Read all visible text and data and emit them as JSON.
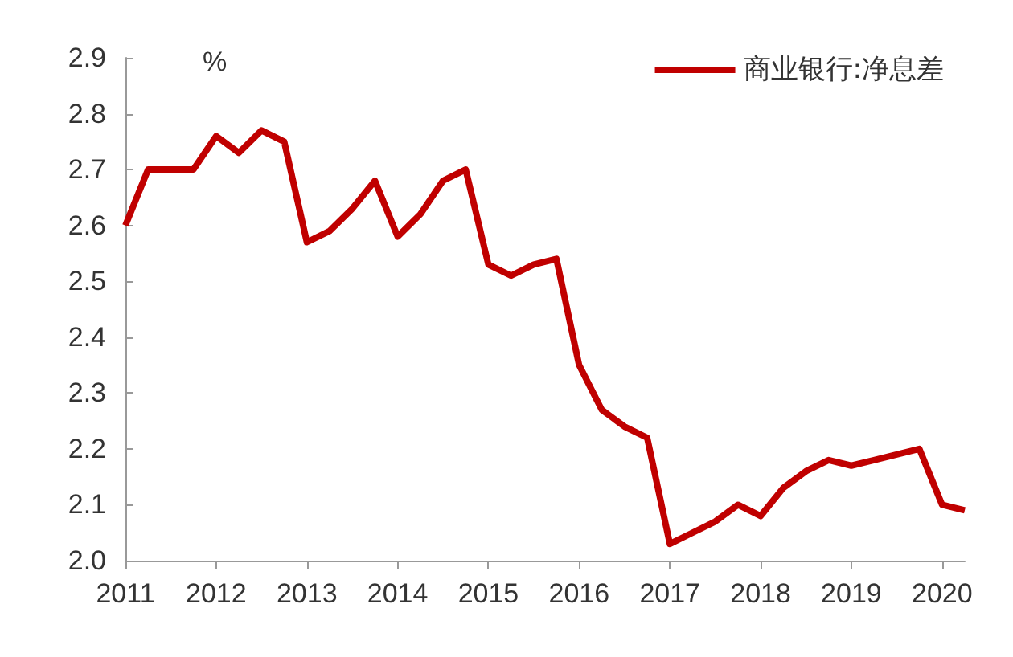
{
  "chart_data": {
    "type": "line",
    "ylabel": "%",
    "x": [
      2011,
      2011.25,
      2011.5,
      2011.75,
      2012,
      2012.25,
      2012.5,
      2012.75,
      2013,
      2013.25,
      2013.5,
      2013.75,
      2014,
      2014.25,
      2014.5,
      2014.75,
      2015,
      2015.25,
      2015.5,
      2015.75,
      2016,
      2016.25,
      2016.5,
      2016.75,
      2017,
      2017.25,
      2017.5,
      2017.75,
      2018,
      2018.25,
      2018.5,
      2018.75,
      2019,
      2019.25,
      2019.5,
      2019.75,
      2020,
      2020.25
    ],
    "series": [
      {
        "name": "商业银行:净息差",
        "color": "#c00000",
        "values": [
          2.6,
          2.7,
          2.7,
          2.7,
          2.76,
          2.73,
          2.77,
          2.75,
          2.57,
          2.59,
          2.63,
          2.68,
          2.58,
          2.62,
          2.68,
          2.7,
          2.53,
          2.51,
          2.53,
          2.54,
          2.35,
          2.27,
          2.24,
          2.22,
          2.03,
          2.05,
          2.07,
          2.1,
          2.08,
          2.13,
          2.16,
          2.18,
          2.17,
          2.18,
          2.19,
          2.2,
          2.1,
          2.09
        ]
      }
    ],
    "xlim": [
      2011,
      2020.25
    ],
    "xticks": [
      2011,
      2012,
      2013,
      2014,
      2015,
      2016,
      2017,
      2018,
      2019,
      2020
    ],
    "ylim": [
      2.0,
      2.9
    ],
    "yticks": [
      {
        "value": 2.0,
        "label": "2.0"
      },
      2.1,
      2.2,
      2.3,
      2.4,
      2.5,
      2.6,
      2.7,
      2.8,
      2.9
    ],
    "grid": false,
    "legend": "top right",
    "marker": "none",
    "line_style": "solid"
  }
}
